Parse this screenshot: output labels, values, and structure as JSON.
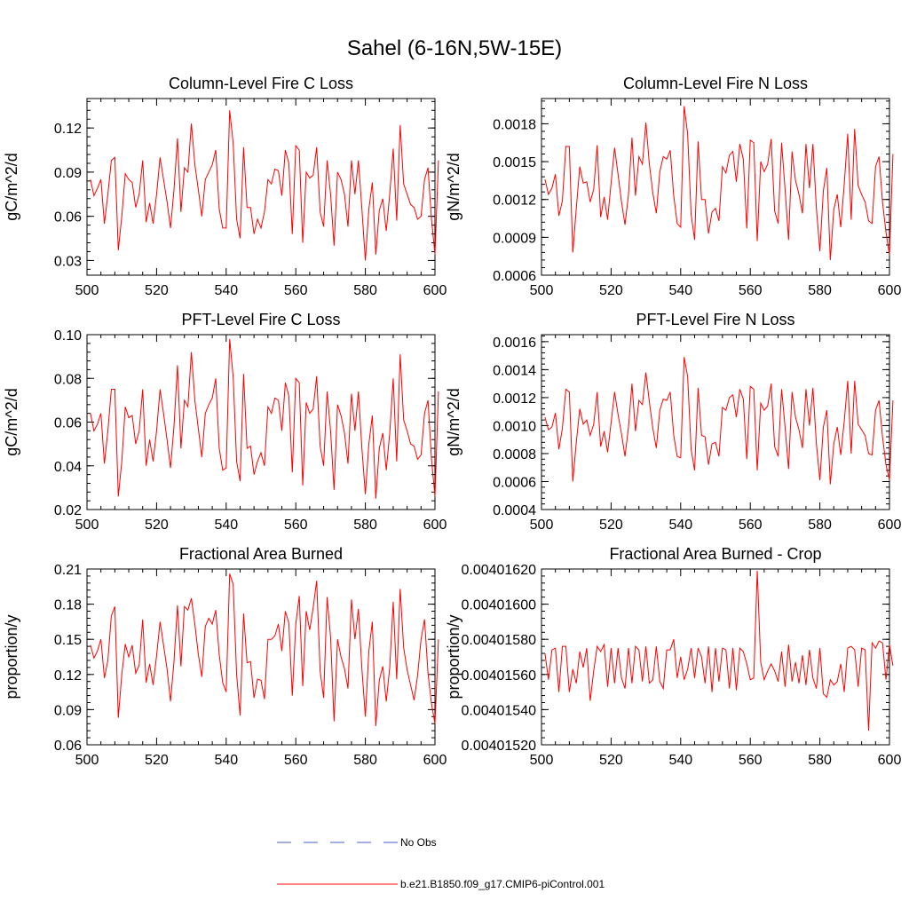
{
  "main_title": "Sahel (6-16N,5W-15E)",
  "legend": {
    "entries": [
      {
        "label": "No Obs",
        "color": "#4a5fd0",
        "style": "dashed"
      },
      {
        "label": "b.e21.B1850.f09_g17.CMIP6-piControl.001",
        "color": "#ff0000",
        "style": "solid"
      }
    ]
  },
  "chart_data": [
    {
      "type": "line",
      "title": "Column-Level Fire C Loss",
      "ylabel": "gC/m^2/d",
      "xlim": [
        500,
        600
      ],
      "ylim": [
        0.02,
        0.14
      ],
      "yticks": [
        0.03,
        0.06,
        0.09,
        0.12
      ],
      "ytick_labels": [
        "0.03",
        "0.06",
        "0.09",
        "0.12"
      ],
      "xticks": [
        500,
        520,
        540,
        560,
        580,
        600
      ],
      "xtick_labels": [
        "500",
        "520",
        "540",
        "560",
        "580",
        "600"
      ],
      "x_start": 501,
      "values": [
        0.085,
        0.074,
        0.079,
        0.085,
        0.055,
        0.075,
        0.098,
        0.1,
        0.037,
        0.06,
        0.089,
        0.085,
        0.083,
        0.066,
        0.075,
        0.098,
        0.056,
        0.069,
        0.055,
        0.075,
        0.1,
        0.085,
        0.07,
        0.052,
        0.078,
        0.113,
        0.063,
        0.093,
        0.09,
        0.123,
        0.095,
        0.078,
        0.06,
        0.085,
        0.09,
        0.095,
        0.105,
        0.065,
        0.052,
        0.052,
        0.132,
        0.11,
        0.058,
        0.045,
        0.107,
        0.066,
        0.066,
        0.048,
        0.058,
        0.052,
        0.063,
        0.085,
        0.082,
        0.092,
        0.091,
        0.074,
        0.105,
        0.096,
        0.048,
        0.108,
        0.105,
        0.042,
        0.09,
        0.086,
        0.088,
        0.107,
        0.063,
        0.053,
        0.098,
        0.075,
        0.04,
        0.09,
        0.085,
        0.075,
        0.053,
        0.098,
        0.075,
        0.098,
        0.065,
        0.03,
        0.065,
        0.083,
        0.034,
        0.064,
        0.072,
        0.05,
        0.075,
        0.106,
        0.057,
        0.122,
        0.082,
        0.075,
        0.068,
        0.066,
        0.058,
        0.06,
        0.085,
        0.093,
        0.058,
        0.034,
        0.098
      ]
    },
    {
      "type": "line",
      "title": "Column-Level Fire N Loss",
      "ylabel": "gN/m^2/d",
      "xlim": [
        500,
        600
      ],
      "ylim": [
        0.0006,
        0.002
      ],
      "yticks": [
        0.0006,
        0.0009,
        0.0012,
        0.0015,
        0.0018
      ],
      "ytick_labels": [
        "0.0006",
        "0.0009",
        "0.0012",
        "0.0015",
        "0.0018"
      ],
      "xticks": [
        500,
        520,
        540,
        560,
        580,
        600
      ],
      "xtick_labels": [
        "500",
        "520",
        "540",
        "560",
        "580",
        "600"
      ],
      "x_start": 501,
      "values": [
        0.00136,
        0.00124,
        0.00129,
        0.0014,
        0.00107,
        0.00119,
        0.00162,
        0.00162,
        0.00078,
        0.00113,
        0.00146,
        0.00133,
        0.00134,
        0.00118,
        0.00128,
        0.00163,
        0.00106,
        0.00122,
        0.00104,
        0.00133,
        0.00161,
        0.0014,
        0.00118,
        0.001,
        0.00124,
        0.00169,
        0.00123,
        0.00154,
        0.00148,
        0.00181,
        0.00148,
        0.00125,
        0.00109,
        0.00142,
        0.00154,
        0.00152,
        0.00159,
        0.00123,
        0.00101,
        0.00098,
        0.00194,
        0.00172,
        0.00108,
        0.00088,
        0.00166,
        0.0012,
        0.0012,
        0.00093,
        0.0011,
        0.00113,
        0.00103,
        0.00146,
        0.00141,
        0.00155,
        0.00158,
        0.00134,
        0.00164,
        0.00152,
        0.00097,
        0.00167,
        0.00165,
        0.00087,
        0.0015,
        0.00142,
        0.00148,
        0.00168,
        0.00111,
        0.00101,
        0.00165,
        0.00128,
        0.00088,
        0.00158,
        0.00135,
        0.00124,
        0.00109,
        0.00164,
        0.00129,
        0.00164,
        0.00113,
        0.00079,
        0.00127,
        0.00145,
        0.00072,
        0.00112,
        0.00124,
        0.00098,
        0.00132,
        0.00172,
        0.00104,
        0.00176,
        0.00131,
        0.00124,
        0.00118,
        0.00103,
        0.00101,
        0.00146,
        0.00154,
        0.00118,
        0.00094,
        0.00076,
        0.00156
      ]
    },
    {
      "type": "line",
      "title": "PFT-Level Fire C Loss",
      "ylabel": "gC/m^2/d",
      "xlim": [
        500,
        600
      ],
      "ylim": [
        0.02,
        0.1
      ],
      "yticks": [
        0.02,
        0.04,
        0.06,
        0.08,
        0.1
      ],
      "ytick_labels": [
        "0.02",
        "0.04",
        "0.06",
        "0.08",
        "0.10"
      ],
      "xticks": [
        500,
        520,
        540,
        560,
        580,
        600
      ],
      "xtick_labels": [
        "500",
        "520",
        "540",
        "560",
        "580",
        "600"
      ],
      "x_start": 501,
      "values": [
        0.064,
        0.056,
        0.059,
        0.064,
        0.041,
        0.056,
        0.075,
        0.075,
        0.026,
        0.042,
        0.067,
        0.062,
        0.063,
        0.05,
        0.056,
        0.075,
        0.04,
        0.052,
        0.042,
        0.056,
        0.075,
        0.064,
        0.052,
        0.039,
        0.058,
        0.086,
        0.048,
        0.07,
        0.067,
        0.092,
        0.07,
        0.057,
        0.044,
        0.064,
        0.068,
        0.071,
        0.08,
        0.048,
        0.038,
        0.039,
        0.098,
        0.081,
        0.042,
        0.033,
        0.082,
        0.048,
        0.049,
        0.036,
        0.042,
        0.046,
        0.04,
        0.067,
        0.064,
        0.071,
        0.07,
        0.056,
        0.078,
        0.072,
        0.037,
        0.08,
        0.078,
        0.031,
        0.069,
        0.064,
        0.066,
        0.081,
        0.049,
        0.04,
        0.074,
        0.056,
        0.029,
        0.068,
        0.063,
        0.055,
        0.041,
        0.073,
        0.056,
        0.074,
        0.048,
        0.027,
        0.05,
        0.063,
        0.025,
        0.048,
        0.055,
        0.038,
        0.055,
        0.08,
        0.042,
        0.091,
        0.061,
        0.056,
        0.05,
        0.049,
        0.043,
        0.045,
        0.064,
        0.07,
        0.043,
        0.026,
        0.074
      ]
    },
    {
      "type": "line",
      "title": "PFT-Level Fire N Loss",
      "ylabel": "gN/m^2/d",
      "xlim": [
        500,
        600
      ],
      "ylim": [
        0.0004,
        0.00165
      ],
      "yticks": [
        0.0004,
        0.0006,
        0.0008,
        0.001,
        0.0012,
        0.0014,
        0.0016
      ],
      "ytick_labels": [
        "0.0004",
        "0.0006",
        "0.0008",
        "0.0010",
        "0.0012",
        "0.0014",
        "0.0016"
      ],
      "xticks": [
        500,
        520,
        540,
        560,
        580,
        600
      ],
      "xtick_labels": [
        "500",
        "520",
        "540",
        "560",
        "580",
        "600"
      ],
      "x_start": 501,
      "values": [
        0.00106,
        0.00097,
        0.00099,
        0.00109,
        0.00083,
        0.00098,
        0.00126,
        0.00124,
        0.0006,
        0.00088,
        0.00112,
        0.00101,
        0.00104,
        0.00093,
        0.00101,
        0.00124,
        0.00085,
        0.00096,
        0.00081,
        0.00102,
        0.00124,
        0.00108,
        0.00094,
        0.00078,
        0.00099,
        0.0013,
        0.00096,
        0.00118,
        0.00115,
        0.00138,
        0.00117,
        0.00098,
        0.00084,
        0.00111,
        0.00119,
        0.00118,
        0.00124,
        0.00093,
        0.00078,
        0.00077,
        0.00149,
        0.00135,
        0.00083,
        0.00068,
        0.00127,
        0.00093,
        0.00092,
        0.00072,
        0.00087,
        0.00088,
        0.00078,
        0.00113,
        0.00111,
        0.0012,
        0.00122,
        0.00106,
        0.00126,
        0.00119,
        0.00076,
        0.00128,
        0.00126,
        0.00068,
        0.00116,
        0.00111,
        0.00114,
        0.0013,
        0.00085,
        0.00078,
        0.00126,
        0.00099,
        0.00069,
        0.00124,
        0.00106,
        0.00097,
        0.00084,
        0.00126,
        0.001,
        0.00127,
        0.00087,
        0.00061,
        0.00099,
        0.00111,
        0.00058,
        0.00087,
        0.00099,
        0.00079,
        0.00103,
        0.00132,
        0.0008,
        0.00132,
        0.00101,
        0.00097,
        0.00093,
        0.0008,
        0.00079,
        0.00111,
        0.00118,
        0.00092,
        0.00072,
        0.00061,
        0.00118
      ]
    },
    {
      "type": "line",
      "title": "Fractional Area Burned",
      "ylabel": "proportion/y",
      "xlim": [
        500,
        600
      ],
      "ylim": [
        0.06,
        0.21
      ],
      "yticks": [
        0.06,
        0.09,
        0.12,
        0.15,
        0.18,
        0.21
      ],
      "ytick_labels": [
        "0.06",
        "0.09",
        "0.12",
        "0.15",
        "0.18",
        "0.21"
      ],
      "xticks": [
        500,
        520,
        540,
        560,
        580,
        600
      ],
      "xtick_labels": [
        "500",
        "520",
        "540",
        "560",
        "580",
        "600"
      ],
      "x_start": 501,
      "values": [
        0.145,
        0.134,
        0.14,
        0.15,
        0.117,
        0.132,
        0.17,
        0.178,
        0.083,
        0.12,
        0.146,
        0.135,
        0.145,
        0.121,
        0.128,
        0.167,
        0.113,
        0.129,
        0.111,
        0.136,
        0.165,
        0.145,
        0.125,
        0.097,
        0.131,
        0.179,
        0.127,
        0.178,
        0.175,
        0.185,
        0.163,
        0.137,
        0.118,
        0.161,
        0.168,
        0.163,
        0.175,
        0.137,
        0.113,
        0.105,
        0.206,
        0.197,
        0.12,
        0.085,
        0.172,
        0.13,
        0.131,
        0.1,
        0.116,
        0.115,
        0.099,
        0.15,
        0.15,
        0.153,
        0.163,
        0.14,
        0.174,
        0.164,
        0.102,
        0.163,
        0.187,
        0.11,
        0.174,
        0.158,
        0.177,
        0.2,
        0.123,
        0.1,
        0.186,
        0.152,
        0.08,
        0.15,
        0.135,
        0.125,
        0.108,
        0.184,
        0.15,
        0.176,
        0.125,
        0.084,
        0.14,
        0.165,
        0.076,
        0.115,
        0.127,
        0.097,
        0.126,
        0.182,
        0.116,
        0.193,
        0.143,
        0.124,
        0.111,
        0.098,
        0.119,
        0.15,
        0.167,
        0.121,
        0.095,
        0.078,
        0.15
      ]
    },
    {
      "type": "line",
      "title": "Fractional Area Burned - Crop",
      "ylabel": "proportion/y",
      "xlim": [
        500,
        600
      ],
      "ylim": [
        0.0040152,
        0.0040162
      ],
      "yticks": [
        0.0040152,
        0.0040154,
        0.0040156,
        0.0040158,
        0.004016,
        0.0040162
      ],
      "ytick_labels": [
        "0.00401520",
        "0.00401540",
        "0.00401560",
        "0.00401580",
        "0.00401600",
        "0.00401620"
      ],
      "xticks": [
        500,
        520,
        540,
        560,
        580,
        600
      ],
      "xtick_labels": [
        "500",
        "520",
        "540",
        "560",
        "580",
        "600"
      ],
      "x_start": 501,
      "values": [
        0.00401572,
        0.00401557,
        0.00401574,
        0.00401575,
        0.0040155,
        0.00401576,
        0.00401576,
        0.0040155,
        0.00401563,
        0.00401555,
        0.00401573,
        0.00401564,
        0.00401575,
        0.00401545,
        0.00401562,
        0.00401576,
        0.00401573,
        0.00401577,
        0.00401553,
        0.00401575,
        0.00401555,
        0.00401575,
        0.00401558,
        0.00401552,
        0.00401575,
        0.00401555,
        0.00401576,
        0.00401574,
        0.00401556,
        0.00401576,
        0.00401555,
        0.00401557,
        0.00401576,
        0.00401556,
        0.00401552,
        0.00401574,
        0.00401574,
        0.0040158,
        0.00401558,
        0.0040157,
        0.00401557,
        0.00401563,
        0.00401575,
        0.00401558,
        0.00401575,
        0.0040157,
        0.00401555,
        0.00401576,
        0.0040155,
        0.00401575,
        0.00401556,
        0.00401575,
        0.00401574,
        0.00401552,
        0.00401575,
        0.00401551,
        0.00401575,
        0.00401573,
        0.00401566,
        0.00401557,
        0.00401558,
        0.00401619,
        0.00401567,
        0.00401557,
        0.00401562,
        0.00401566,
        0.00401562,
        0.00401556,
        0.00401573,
        0.00401553,
        0.00401577,
        0.00401556,
        0.00401567,
        0.00401555,
        0.00401571,
        0.00401554,
        0.00401574,
        0.00401558,
        0.00401552,
        0.00401575,
        0.00401549,
        0.00401547,
        0.00401557,
        0.00401554,
        0.00401556,
        0.00401566,
        0.0040155,
        0.00401575,
        0.00401576,
        0.00401574,
        0.00401553,
        0.00401575,
        0.00401574,
        0.00401528,
        0.00401578,
        0.00401575,
        0.00401579,
        0.00401578,
        0.00401557,
        0.00401577,
        0.00401565
      ]
    }
  ]
}
